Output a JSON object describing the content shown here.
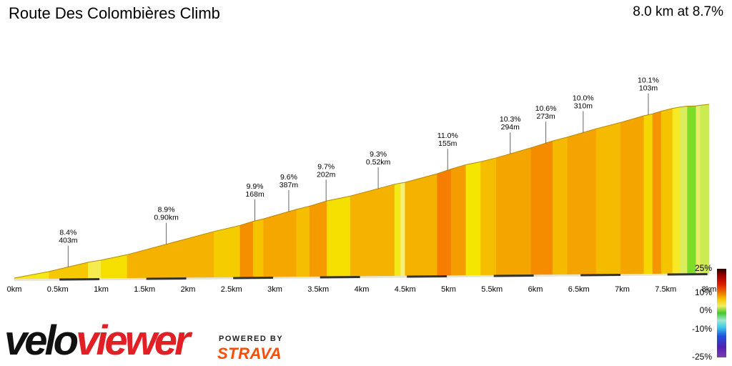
{
  "header": {
    "title": "Route Des Colombières Climb",
    "summary": "8.0 km at 8.7%"
  },
  "branding": {
    "logo_part1": "velo",
    "logo_part2": "viewer",
    "powered_by": "POWERED BY",
    "strava": "STRAVA",
    "strava_color": "#fc4c02",
    "logo_red": "#e31f26"
  },
  "chart_data": {
    "type": "area",
    "title": "",
    "xlabel": "",
    "ylabel": "",
    "x_unit": "km",
    "xlim": [
      0,
      8
    ],
    "x_ticks": [
      {
        "value": 0,
        "label": "0km"
      },
      {
        "value": 0.5,
        "label": "0.5km"
      },
      {
        "value": 1,
        "label": "1km"
      },
      {
        "value": 1.5,
        "label": "1.5km"
      },
      {
        "value": 2,
        "label": "2km"
      },
      {
        "value": 2.5,
        "label": "2.5km"
      },
      {
        "value": 3,
        "label": "3km"
      },
      {
        "value": 3.5,
        "label": "3.5km"
      },
      {
        "value": 4,
        "label": "4km"
      },
      {
        "value": 4.5,
        "label": "4.5km"
      },
      {
        "value": 5,
        "label": "5km"
      },
      {
        "value": 5.5,
        "label": "5.5km"
      },
      {
        "value": 6,
        "label": "6km"
      },
      {
        "value": 6.5,
        "label": "6.5km"
      },
      {
        "value": 7,
        "label": "7km"
      },
      {
        "value": 7.5,
        "label": "7.5km"
      },
      {
        "value": 8,
        "label": "8km"
      }
    ],
    "segments": [
      {
        "start": 0.0,
        "end": 0.4,
        "gradient": 6.2
      },
      {
        "start": 0.4,
        "end": 0.85,
        "gradient": 7.8
      },
      {
        "start": 0.85,
        "end": 1.0,
        "gradient": 5.5
      },
      {
        "start": 1.0,
        "end": 1.3,
        "gradient": 6.8
      },
      {
        "start": 1.3,
        "end": 2.3,
        "gradient": 8.8
      },
      {
        "start": 2.3,
        "end": 2.6,
        "gradient": 7.6
      },
      {
        "start": 2.6,
        "end": 2.75,
        "gradient": 10.4
      },
      {
        "start": 2.75,
        "end": 2.87,
        "gradient": 8.0
      },
      {
        "start": 2.87,
        "end": 3.25,
        "gradient": 9.4
      },
      {
        "start": 3.25,
        "end": 3.4,
        "gradient": 8.2
      },
      {
        "start": 3.4,
        "end": 3.6,
        "gradient": 9.9
      },
      {
        "start": 3.6,
        "end": 3.87,
        "gradient": 6.8
      },
      {
        "start": 3.87,
        "end": 4.38,
        "gradient": 8.8
      },
      {
        "start": 4.38,
        "end": 4.45,
        "gradient": 6.2
      },
      {
        "start": 4.45,
        "end": 4.5,
        "gradient": 5.0
      },
      {
        "start": 4.5,
        "end": 4.87,
        "gradient": 8.9
      },
      {
        "start": 4.87,
        "end": 5.03,
        "gradient": 11.0
      },
      {
        "start": 5.03,
        "end": 5.2,
        "gradient": 9.8
      },
      {
        "start": 5.2,
        "end": 5.37,
        "gradient": 6.5
      },
      {
        "start": 5.37,
        "end": 5.55,
        "gradient": 8.2
      },
      {
        "start": 5.55,
        "end": 5.95,
        "gradient": 9.5
      },
      {
        "start": 5.95,
        "end": 6.2,
        "gradient": 10.5
      },
      {
        "start": 6.2,
        "end": 6.37,
        "gradient": 8.5
      },
      {
        "start": 6.37,
        "end": 6.7,
        "gradient": 9.6
      },
      {
        "start": 6.7,
        "end": 6.98,
        "gradient": 8.4
      },
      {
        "start": 6.98,
        "end": 7.25,
        "gradient": 9.5
      },
      {
        "start": 7.25,
        "end": 7.35,
        "gradient": 7.2
      },
      {
        "start": 7.35,
        "end": 7.45,
        "gradient": 10.1
      },
      {
        "start": 7.45,
        "end": 7.58,
        "gradient": 8.0
      },
      {
        "start": 7.58,
        "end": 7.67,
        "gradient": 6.0
      },
      {
        "start": 7.67,
        "end": 7.75,
        "gradient": 4.0
      },
      {
        "start": 7.75,
        "end": 7.85,
        "gradient": 1.0
      },
      {
        "start": 7.85,
        "end": 7.9,
        "gradient": 4.5
      },
      {
        "start": 7.9,
        "end": 8.0,
        "gradient": 3.5
      }
    ],
    "annotations": [
      {
        "x": 0.62,
        "gradient": "8.4%",
        "length": "403m"
      },
      {
        "x": 1.75,
        "gradient": "8.9%",
        "length": "0.90km"
      },
      {
        "x": 2.77,
        "gradient": "9.9%",
        "length": "168m"
      },
      {
        "x": 3.16,
        "gradient": "9.6%",
        "length": "387m"
      },
      {
        "x": 3.59,
        "gradient": "9.7%",
        "length": "202m"
      },
      {
        "x": 4.19,
        "gradient": "9.3%",
        "length": "0.52km"
      },
      {
        "x": 4.99,
        "gradient": "11.0%",
        "length": "155m"
      },
      {
        "x": 5.71,
        "gradient": "10.3%",
        "length": "294m"
      },
      {
        "x": 6.12,
        "gradient": "10.6%",
        "length": "273m"
      },
      {
        "x": 6.55,
        "gradient": "10.0%",
        "length": "310m"
      },
      {
        "x": 7.3,
        "gradient": "10.1%",
        "length": "103m"
      }
    ],
    "legend": {
      "type": "gradient-scale",
      "placement": "right",
      "labels": [
        "25%",
        "10%",
        "0%",
        "-10%",
        "-25%"
      ],
      "values": [
        25,
        10,
        0,
        -10,
        -25
      ]
    }
  }
}
